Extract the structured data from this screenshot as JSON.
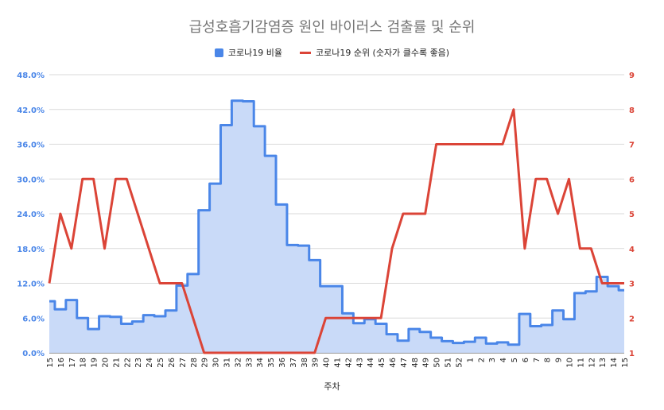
{
  "chart_data": {
    "type": "line",
    "title": "급성호흡기감염증 원인 바이러스 검출률 및 순위",
    "xlabel": "주차",
    "ylabel_left": "",
    "ylabel_right": "",
    "categories": [
      "15",
      "16",
      "17",
      "18",
      "19",
      "20",
      "21",
      "22",
      "23",
      "24",
      "25",
      "26",
      "27",
      "28",
      "29",
      "30",
      "31",
      "32",
      "33",
      "34",
      "35",
      "36",
      "37",
      "38",
      "39",
      "40",
      "41",
      "42",
      "43",
      "44",
      "45",
      "46",
      "47",
      "48",
      "49",
      "50",
      "51",
      "52",
      "1",
      "2",
      "3",
      "4",
      "5",
      "6",
      "7",
      "8",
      "9",
      "10",
      "11",
      "12",
      "13",
      "14",
      "15"
    ],
    "yticks_left": [
      "0.0%",
      "6.0%",
      "12.0%",
      "18.0%",
      "24.0%",
      "30.0%",
      "36.0%",
      "42.0%",
      "48.0%"
    ],
    "yticks_right": [
      "1",
      "2",
      "3",
      "4",
      "5",
      "6",
      "7",
      "8",
      "9"
    ],
    "ylim_left": [
      0,
      48
    ],
    "ylim_right": [
      1,
      9
    ],
    "grid": true,
    "legend_position": "top",
    "series": [
      {
        "name": "코로나19 비율",
        "axis": "left",
        "style": "stepped-area",
        "color": "#4a86e8",
        "fill": "#c9daf8",
        "values": [
          8.9,
          7.5,
          9.1,
          6.0,
          4.1,
          6.3,
          6.2,
          5.0,
          5.4,
          6.5,
          6.3,
          7.3,
          11.6,
          13.6,
          24.6,
          29.2,
          39.3,
          43.5,
          43.4,
          39.1,
          34.0,
          25.6,
          18.6,
          18.5,
          16.0,
          11.5,
          11.5,
          6.8,
          5.1,
          5.8,
          5.0,
          3.2,
          2.1,
          4.1,
          3.6,
          2.6,
          2.0,
          1.7,
          1.9,
          2.6,
          1.6,
          1.8,
          1.4,
          6.7,
          4.6,
          4.8,
          7.3,
          5.8,
          10.3,
          10.6,
          13.1,
          11.5,
          10.8
        ]
      },
      {
        "name": "코로나19 순위 (숫자가 클수록 좋음)",
        "axis": "right",
        "style": "line",
        "color": "#db4437",
        "values": [
          3,
          5,
          4,
          6,
          6,
          4,
          6,
          6,
          5,
          4,
          3,
          3,
          3,
          2,
          1,
          1,
          1,
          1,
          1,
          1,
          1,
          1,
          1,
          1,
          1,
          2,
          2,
          2,
          2,
          2,
          2,
          4,
          5,
          5,
          5,
          7,
          7,
          7,
          7,
          7,
          7,
          7,
          8,
          4,
          6,
          6,
          5,
          6,
          4,
          4,
          3,
          3,
          3
        ]
      }
    ],
    "colors": {
      "left_axis": "#4a86e8",
      "right_axis": "#db4437",
      "grid": "#d9d9d9"
    }
  }
}
